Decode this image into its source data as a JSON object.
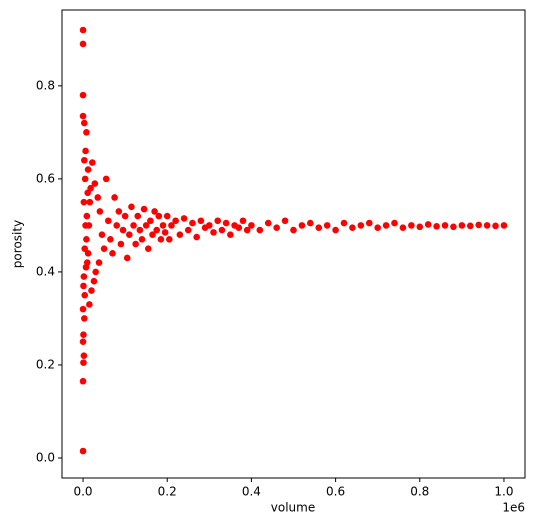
{
  "chart_data": {
    "type": "scatter",
    "color": "#ff0000",
    "x_label": "volume",
    "y_label": "porosity",
    "x_offset_label": "1e6",
    "xlim": [
      -50000,
      1050000
    ],
    "ylim": [
      -0.043,
      0.963
    ],
    "xticks": [
      {
        "value": 0,
        "label": "0.0"
      },
      {
        "value": 200000,
        "label": "0.2"
      },
      {
        "value": 400000,
        "label": "0.4"
      },
      {
        "value": 600000,
        "label": "0.6"
      },
      {
        "value": 800000,
        "label": "0.8"
      },
      {
        "value": 1000000,
        "label": "1.0"
      }
    ],
    "yticks": [
      {
        "value": 0,
        "label": "0.0"
      },
      0.2,
      0.4,
      0.6,
      0.8
    ],
    "x": [
      0,
      0,
      0,
      0,
      3000,
      0,
      0,
      1000,
      2000,
      0,
      1000,
      3000,
      0,
      4000,
      1000,
      2000,
      6000,
      3000,
      8000,
      12000,
      5000,
      22000,
      28000,
      15000,
      20000,
      30000,
      26000,
      10000,
      12000,
      8000,
      14000,
      9000,
      16000,
      18000,
      35000,
      40000,
      45000,
      50000,
      38000,
      55000,
      60000,
      65000,
      70000,
      75000,
      80000,
      85000,
      90000,
      95000,
      100000,
      105000,
      110000,
      115000,
      120000,
      125000,
      130000,
      135000,
      140000,
      145000,
      150000,
      155000,
      160000,
      165000,
      170000,
      175000,
      180000,
      185000,
      190000,
      195000,
      200000,
      205000,
      210000,
      220000,
      230000,
      240000,
      250000,
      260000,
      270000,
      280000,
      290000,
      300000,
      310000,
      320000,
      330000,
      340000,
      350000,
      360000,
      370000,
      380000,
      390000,
      400000,
      420000,
      440000,
      460000,
      480000,
      500000,
      520000,
      540000,
      560000,
      580000,
      600000,
      620000,
      640000,
      660000,
      680000,
      700000,
      720000,
      740000,
      760000,
      780000,
      800000,
      820000,
      840000,
      860000,
      880000,
      900000,
      920000,
      940000,
      960000,
      980000,
      1000000,
      4000,
      6000,
      2000,
      7000,
      11000
    ],
    "values": [
      0.92,
      0.89,
      0.78,
      0.735,
      0.72,
      0.015,
      0.165,
      0.205,
      0.22,
      0.25,
      0.265,
      0.3,
      0.32,
      0.35,
      0.37,
      0.39,
      0.66,
      0.64,
      0.7,
      0.62,
      0.6,
      0.635,
      0.59,
      0.33,
      0.36,
      0.4,
      0.38,
      0.42,
      0.44,
      0.47,
      0.5,
      0.52,
      0.55,
      0.58,
      0.56,
      0.53,
      0.48,
      0.45,
      0.42,
      0.6,
      0.51,
      0.47,
      0.44,
      0.56,
      0.5,
      0.53,
      0.46,
      0.49,
      0.52,
      0.43,
      0.48,
      0.54,
      0.5,
      0.46,
      0.52,
      0.49,
      0.47,
      0.535,
      0.5,
      0.45,
      0.51,
      0.48,
      0.53,
      0.49,
      0.52,
      0.47,
      0.5,
      0.485,
      0.52,
      0.47,
      0.5,
      0.51,
      0.48,
      0.515,
      0.49,
      0.505,
      0.475,
      0.51,
      0.495,
      0.5,
      0.485,
      0.51,
      0.49,
      0.505,
      0.48,
      0.5,
      0.495,
      0.51,
      0.49,
      0.5,
      0.49,
      0.505,
      0.495,
      0.51,
      0.49,
      0.5,
      0.505,
      0.495,
      0.5,
      0.49,
      0.505,
      0.495,
      0.5,
      0.505,
      0.495,
      0.5,
      0.505,
      0.495,
      0.5,
      0.497,
      0.502,
      0.498,
      0.5,
      0.497,
      0.5,
      0.499,
      0.501,
      0.5,
      0.499,
      0.5,
      0.45,
      0.5,
      0.55,
      0.41,
      0.57
    ]
  }
}
